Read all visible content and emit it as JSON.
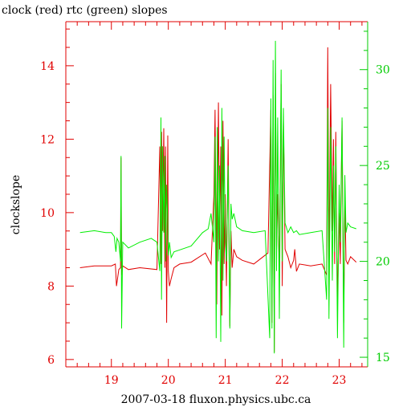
{
  "chart_data": {
    "type": "line",
    "title": "clock (red) rtc (green) slopes",
    "xlabel": "2007-03-18 fluxon.physics.ubc.ca",
    "ylabel": "clockslope",
    "xlim": [
      18.2,
      23.5
    ],
    "ylim_left": [
      5.8,
      15.2
    ],
    "ylim_right": [
      14.5,
      32.5
    ],
    "xticks": [
      "19",
      "20",
      "21",
      "22",
      "23"
    ],
    "yticks_left": [
      "6",
      "8",
      "10",
      "12",
      "14"
    ],
    "yticks_right": [
      "15",
      "20",
      "25",
      "30"
    ],
    "grid": false,
    "colors": {
      "clock": "#e00000",
      "rtc": "#00ee00",
      "frame": "#e00000",
      "right_axis": "#00cc00"
    },
    "series": [
      {
        "name": "clock",
        "axis": "left",
        "color": "#e00000",
        "x": [
          18.45,
          18.7,
          19.0,
          19.07,
          19.09,
          19.13,
          19.16,
          19.17,
          19.18,
          19.2,
          19.3,
          19.5,
          19.8,
          19.85,
          19.87,
          19.88,
          19.9,
          19.92,
          19.94,
          19.95,
          19.97,
          19.99,
          20.0,
          20.02,
          20.05,
          20.1,
          20.2,
          20.4,
          20.65,
          20.75,
          20.8,
          20.82,
          20.85,
          20.88,
          20.9,
          20.92,
          20.94,
          20.96,
          20.98,
          21.0,
          21.02,
          21.05,
          21.08,
          21.1,
          21.12,
          21.15,
          21.2,
          21.3,
          21.5,
          21.75,
          21.8,
          21.82,
          21.84,
          21.86,
          21.88,
          21.9,
          21.92,
          21.95,
          21.98,
          22.0,
          22.02,
          22.05,
          22.1,
          22.15,
          22.2,
          22.22,
          22.25,
          22.3,
          22.5,
          22.7,
          22.78,
          22.8,
          22.82,
          22.85,
          22.88,
          22.9,
          22.92,
          22.94,
          22.97,
          23.0,
          23.02,
          23.05,
          23.08,
          23.1,
          23.12,
          23.15,
          23.2,
          23.3
        ],
        "y": [
          8.5,
          8.55,
          8.55,
          8.6,
          8.0,
          8.45,
          8.5,
          11.5,
          8.3,
          8.55,
          8.45,
          8.5,
          8.45,
          11.8,
          8.6,
          12.2,
          9.5,
          12.3,
          8.5,
          11.8,
          7.0,
          12.1,
          8.4,
          8.0,
          8.2,
          8.5,
          8.6,
          8.65,
          8.9,
          8.6,
          10.5,
          12.8,
          7.5,
          13.0,
          9.0,
          11.8,
          7.2,
          12.5,
          8.6,
          10.5,
          8.0,
          12.0,
          6.9,
          9.5,
          8.5,
          9.0,
          8.8,
          8.7,
          8.6,
          8.9,
          12.8,
          7.0,
          13.2,
          6.2,
          13.8,
          9.0,
          10.5,
          8.4,
          13.5,
          8.0,
          12.5,
          9.0,
          8.8,
          8.5,
          8.7,
          9.0,
          8.4,
          8.6,
          8.55,
          8.6,
          8.3,
          14.5,
          8.6,
          13.5,
          9.5,
          12.0,
          8.6,
          12.2,
          7.5,
          10.0,
          8.6,
          12.5,
          7.0,
          10.5,
          8.7,
          8.6,
          8.8,
          8.65
        ]
      },
      {
        "name": "rtc",
        "axis": "right",
        "color": "#00ee00",
        "x": [
          18.45,
          18.7,
          18.9,
          19.0,
          19.05,
          19.08,
          19.1,
          19.13,
          19.16,
          19.17,
          19.18,
          19.2,
          19.3,
          19.5,
          19.7,
          19.8,
          19.85,
          19.87,
          19.88,
          19.9,
          19.92,
          19.94,
          19.95,
          19.97,
          19.99,
          20.0,
          20.02,
          20.05,
          20.1,
          20.2,
          20.4,
          20.6,
          20.7,
          20.75,
          20.8,
          20.82,
          20.84,
          20.86,
          20.88,
          20.9,
          20.92,
          20.94,
          20.96,
          20.98,
          21.0,
          21.02,
          21.05,
          21.08,
          21.1,
          21.12,
          21.15,
          21.2,
          21.3,
          21.5,
          21.7,
          21.78,
          21.8,
          21.82,
          21.84,
          21.86,
          21.88,
          21.9,
          21.92,
          21.95,
          21.98,
          22.0,
          22.02,
          22.05,
          22.1,
          22.15,
          22.2,
          22.25,
          22.3,
          22.5,
          22.7,
          22.78,
          22.8,
          22.82,
          22.85,
          22.88,
          22.9,
          22.92,
          22.94,
          22.97,
          23.0,
          23.02,
          23.05,
          23.08,
          23.1,
          23.12,
          23.15,
          23.2,
          23.3
        ],
        "y": [
          21.5,
          21.6,
          21.5,
          21.5,
          21.3,
          20.5,
          21.2,
          21.0,
          20.0,
          25.5,
          16.5,
          21.0,
          20.7,
          21.0,
          21.2,
          21.0,
          19.5,
          27.5,
          18.0,
          26.0,
          21.5,
          25.5,
          20.0,
          24.0,
          22.0,
          20.3,
          21.0,
          20.2,
          20.5,
          20.6,
          20.8,
          21.5,
          21.7,
          22.5,
          21.0,
          26.5,
          16.0,
          27.0,
          20.0,
          25.0,
          15.8,
          28.0,
          19.0,
          26.5,
          21.0,
          20.0,
          25.0,
          16.5,
          23.0,
          22.2,
          22.5,
          21.8,
          21.6,
          21.5,
          21.6,
          16.0,
          28.5,
          16.5,
          30.5,
          15.2,
          31.5,
          19.5,
          27.5,
          17.0,
          30.0,
          20.0,
          28.0,
          22.0,
          21.5,
          21.8,
          21.5,
          21.6,
          21.4,
          21.5,
          21.6,
          18.0,
          28.0,
          17.0,
          27.0,
          19.0,
          25.0,
          20.5,
          26.0,
          16.0,
          24.0,
          21.0,
          27.5,
          15.5,
          24.5,
          21.5,
          22.0,
          21.8,
          21.7
        ]
      }
    ]
  }
}
